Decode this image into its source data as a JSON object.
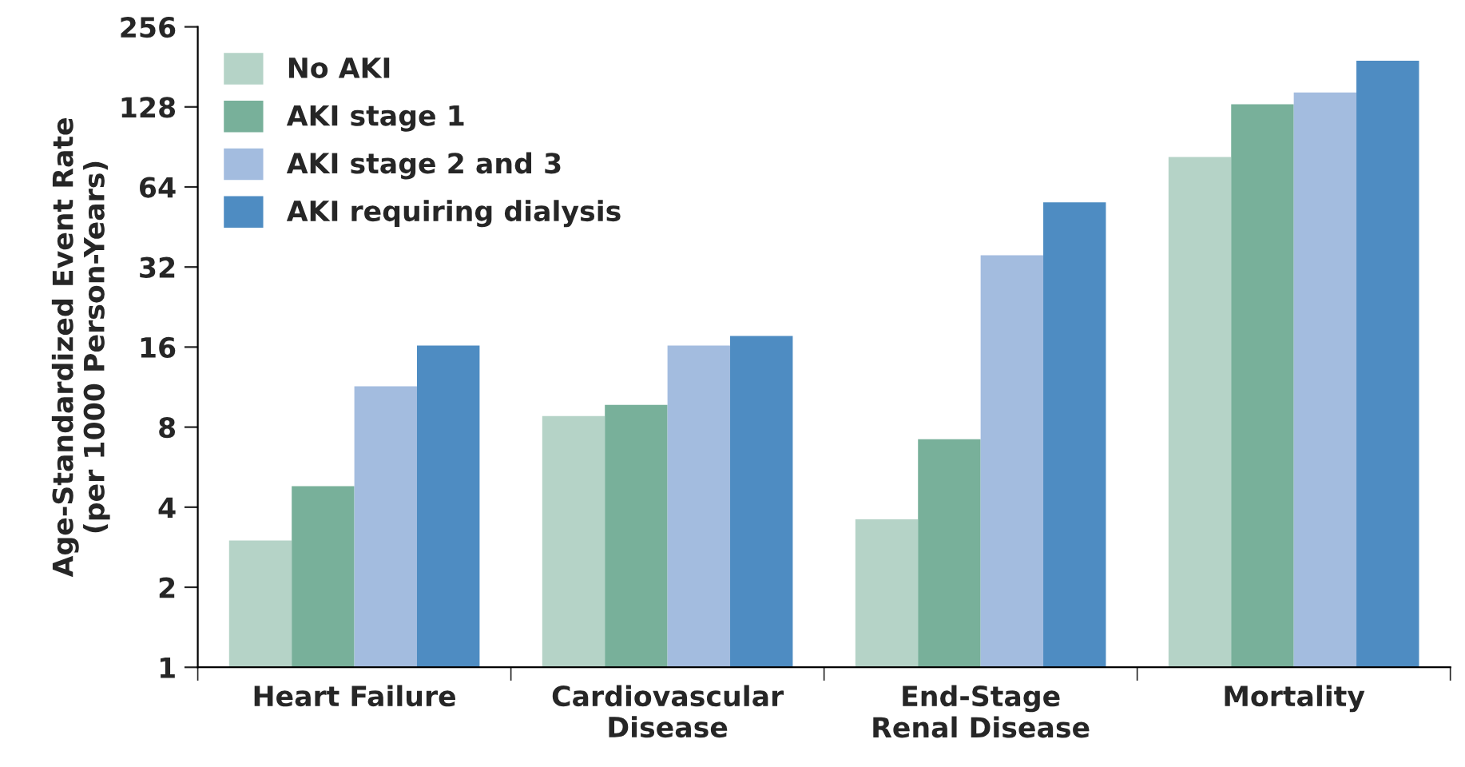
{
  "chart_data": {
    "type": "bar",
    "log": true,
    "ylabel": "Age-Standardized Event Rate\n(per 1000 Person-Years)",
    "categories": [
      "Heart Failure",
      "Cardiovascular\nDisease",
      "End-Stage\nRenal Disease",
      "Mortality"
    ],
    "series": [
      {
        "name": "No AKI",
        "color": "#b5d3c7",
        "values": [
          3.0,
          8.8,
          3.6,
          83
        ]
      },
      {
        "name": "AKI stage 1",
        "color": "#78b09a",
        "values": [
          4.8,
          9.7,
          7.2,
          131
        ]
      },
      {
        "name": "AKI stage 2 and 3",
        "color": "#a3bcdf",
        "values": [
          11.4,
          16.2,
          35.4,
          145
        ]
      },
      {
        "name": "AKI requiring dialysis",
        "color": "#4e8cc2",
        "values": [
          16.2,
          17.6,
          56,
          191
        ]
      }
    ],
    "ylim": [
      1,
      256
    ],
    "yticks": [
      1,
      2,
      4,
      8,
      16,
      32,
      64,
      128,
      256
    ],
    "grid": false,
    "legend": "top left"
  }
}
